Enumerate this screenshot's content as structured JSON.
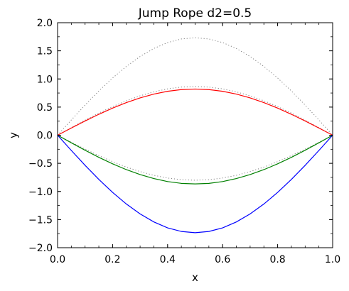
{
  "chart_data": {
    "type": "line",
    "title": "Jump Rope d2=0.5",
    "xlabel": "x",
    "ylabel": "y",
    "xlim": [
      0.0,
      1.0
    ],
    "ylim": [
      -2.0,
      2.0
    ],
    "grid": false,
    "x_ticks": [
      "0.0",
      "0.2",
      "0.4",
      "0.6",
      "0.8",
      "1.0"
    ],
    "x_tick_values": [
      0.0,
      0.2,
      0.4,
      0.6,
      0.8,
      1.0
    ],
    "y_ticks": [
      "2.0",
      "1.5",
      "1.0",
      "0.5",
      "0.0",
      "−0.5",
      "−1.0",
      "−1.5",
      "−2.0"
    ],
    "y_tick_values": [
      2.0,
      1.5,
      1.0,
      0.5,
      0.0,
      -0.5,
      -1.0,
      -1.5,
      -2.0
    ],
    "x": [
      0.0,
      0.05,
      0.1,
      0.15,
      0.2,
      0.25,
      0.3,
      0.35,
      0.4,
      0.45,
      0.5,
      0.55,
      0.6,
      0.65,
      0.7,
      0.75,
      0.8,
      0.85,
      0.9,
      0.95,
      1.0
    ],
    "series": [
      {
        "style": "dotted",
        "color": "#808080",
        "values": [
          0.0,
          0.271,
          0.535,
          0.786,
          1.017,
          1.223,
          1.399,
          1.542,
          1.647,
          1.711,
          1.733,
          1.711,
          1.647,
          1.542,
          1.399,
          1.223,
          1.017,
          0.786,
          0.535,
          0.271,
          0.0
        ]
      },
      {
        "style": "dotted",
        "color": "#808080",
        "values": [
          0.0,
          0.135,
          0.267,
          0.393,
          0.509,
          0.612,
          0.7,
          0.771,
          0.824,
          0.856,
          0.866,
          0.856,
          0.824,
          0.771,
          0.7,
          0.612,
          0.509,
          0.393,
          0.267,
          0.135,
          0.0
        ]
      },
      {
        "style": "dotted",
        "color": "#808080",
        "values": [
          0.0,
          -0.125,
          -0.247,
          -0.363,
          -0.47,
          -0.566,
          -0.647,
          -0.713,
          -0.761,
          -0.791,
          -0.8,
          -0.791,
          -0.761,
          -0.713,
          -0.647,
          -0.566,
          -0.47,
          -0.363,
          -0.247,
          -0.125,
          0.0
        ]
      },
      {
        "style": "solid",
        "color": "#ff0000",
        "values": [
          0.0,
          0.128,
          0.253,
          0.372,
          0.482,
          0.58,
          0.663,
          0.731,
          0.781,
          0.811,
          0.821,
          0.811,
          0.781,
          0.731,
          0.663,
          0.58,
          0.482,
          0.372,
          0.253,
          0.128,
          0.0
        ]
      },
      {
        "style": "solid",
        "color": "#008000",
        "values": [
          0.0,
          -0.135,
          -0.267,
          -0.393,
          -0.509,
          -0.612,
          -0.7,
          -0.771,
          -0.824,
          -0.856,
          -0.866,
          -0.856,
          -0.824,
          -0.771,
          -0.7,
          -0.612,
          -0.509,
          -0.393,
          -0.267,
          -0.135,
          0.0
        ]
      },
      {
        "style": "solid",
        "color": "#0000ff",
        "values": [
          0.0,
          -0.271,
          -0.535,
          -0.786,
          -1.017,
          -1.223,
          -1.399,
          -1.542,
          -1.647,
          -1.711,
          -1.733,
          -1.711,
          -1.647,
          -1.542,
          -1.399,
          -1.223,
          -1.017,
          -0.786,
          -0.535,
          -0.271,
          0.0
        ]
      }
    ]
  }
}
